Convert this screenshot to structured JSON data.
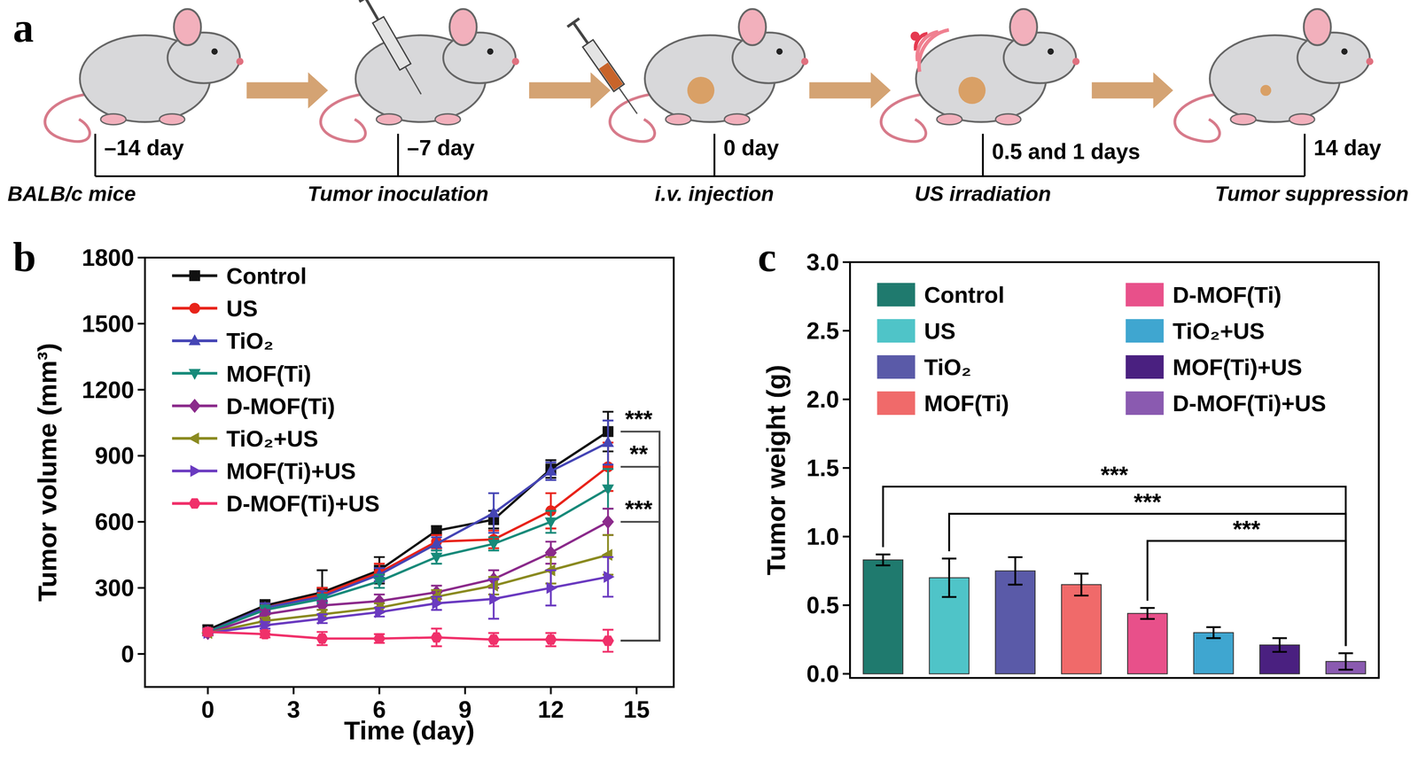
{
  "panels": [
    "a",
    "b",
    "c"
  ],
  "timeline": {
    "steps": [
      {
        "time": "–14 day",
        "label": "BALB/c mice"
      },
      {
        "time": "–7 day",
        "label": "Tumor inoculation"
      },
      {
        "time": "0 day",
        "label": "i.v. injection"
      },
      {
        "time": "0.5 and 1 days",
        "label": "US irradiation"
      },
      {
        "time": "14 day",
        "label": "Tumor suppression"
      }
    ]
  },
  "chart_data": [
    {
      "type": "line",
      "x_label": "Time (day)",
      "y_label": "Tumor volume (mm³)",
      "x": [
        0,
        2,
        4,
        6,
        8,
        10,
        12,
        14
      ],
      "xlim": [
        -2.2,
        16.3
      ],
      "xticks": [
        0,
        3,
        6,
        9,
        12,
        15
      ],
      "ylim": [
        -150,
        1800
      ],
      "yticks": [
        0,
        300,
        600,
        900,
        1200,
        1500,
        1800
      ],
      "legend": "top-left",
      "series": [
        {
          "name": "Control",
          "color": "#111111",
          "marker": "square",
          "values": [
            110,
            220,
            280,
            380,
            560,
            610,
            840,
            1010
          ],
          "errors": [
            20,
            25,
            100,
            60,
            20,
            40,
            40,
            90
          ]
        },
        {
          "name": "US",
          "color": "#e8231a",
          "marker": "circle",
          "values": [
            100,
            210,
            270,
            370,
            510,
            520,
            650,
            850
          ],
          "errors": [
            15,
            20,
            30,
            40,
            30,
            40,
            80,
            110
          ]
        },
        {
          "name": "TiO₂",
          "color": "#4545b5",
          "marker": "triangle-up",
          "values": [
            100,
            210,
            260,
            360,
            500,
            640,
            830,
            960
          ],
          "errors": [
            15,
            20,
            25,
            30,
            30,
            90,
            40,
            100
          ]
        },
        {
          "name": "MOF(Ti)",
          "color": "#178a7a",
          "marker": "triangle-down",
          "values": [
            100,
            200,
            250,
            330,
            440,
            500,
            600,
            750
          ],
          "errors": [
            10,
            20,
            20,
            30,
            30,
            30,
            50,
            90
          ]
        },
        {
          "name": "D-MOF(Ti)",
          "color": "#8b2a8b",
          "marker": "diamond",
          "values": [
            95,
            180,
            220,
            240,
            280,
            340,
            460,
            600
          ],
          "errors": [
            10,
            20,
            20,
            30,
            30,
            40,
            50,
            60
          ]
        },
        {
          "name": "TiO₂+US",
          "color": "#8a8a20",
          "marker": "triangle-left",
          "values": [
            95,
            150,
            180,
            210,
            260,
            310,
            380,
            450
          ],
          "errors": [
            10,
            15,
            20,
            20,
            30,
            40,
            60,
            90
          ]
        },
        {
          "name": "MOF(Ti)+US",
          "color": "#6a3ac0",
          "marker": "triangle-right",
          "values": [
            95,
            130,
            160,
            190,
            230,
            250,
            300,
            350
          ],
          "errors": [
            10,
            15,
            20,
            20,
            30,
            90,
            80,
            90
          ]
        },
        {
          "name": "D-MOF(Ti)+US",
          "color": "#f0306a",
          "marker": "hexagon",
          "values": [
            100,
            90,
            70,
            70,
            75,
            65,
            65,
            60
          ],
          "errors": [
            15,
            15,
            30,
            20,
            40,
            30,
            30,
            50
          ]
        }
      ],
      "annotations": [
        {
          "text": "***",
          "between": [
            "Control",
            "D-MOF(Ti)+US"
          ]
        },
        {
          "text": "**",
          "between": [
            "US",
            "D-MOF(Ti)+US"
          ]
        },
        {
          "text": "***",
          "between": [
            "D-MOF(Ti)",
            "D-MOF(Ti)+US"
          ]
        }
      ]
    },
    {
      "type": "bar",
      "y_label": "Tumor weight (g)",
      "categories": [
        "Control",
        "US",
        "TiO₂",
        "MOF(Ti)",
        "D-MOF(Ti)",
        "TiO₂+US",
        "MOF(Ti)+US",
        "D-MOF(Ti)+US"
      ],
      "values": [
        0.83,
        0.7,
        0.75,
        0.65,
        0.44,
        0.3,
        0.21,
        0.09
      ],
      "errors": [
        0.04,
        0.14,
        0.1,
        0.08,
        0.04,
        0.04,
        0.05,
        0.06
      ],
      "colors": [
        "#1f7a6e",
        "#4fc4c8",
        "#5a5aa8",
        "#f06a6a",
        "#e8508a",
        "#3fa6d0",
        "#4a2080",
        "#8a5ab0"
      ],
      "ylim": [
        -0.03,
        3.0
      ],
      "yticks": [
        {
          "value": 0,
          "label": "0.0"
        },
        {
          "value": 0.5,
          "label": "0.5"
        },
        {
          "value": 1,
          "label": "1.0"
        },
        {
          "value": 1.5,
          "label": "1.5"
        },
        {
          "value": 2,
          "label": "2.0"
        },
        {
          "value": 2.5,
          "label": "2.5"
        },
        {
          "value": 3,
          "label": "3.0"
        }
      ],
      "tick_labels": "y",
      "legend": "top",
      "annotations": [
        {
          "text": "***",
          "between": [
            "Control",
            "D-MOF(Ti)+US"
          ]
        },
        {
          "text": "***",
          "between": [
            "US",
            "D-MOF(Ti)+US"
          ]
        },
        {
          "text": "***",
          "between": [
            "D-MOF(Ti)",
            "D-MOF(Ti)+US"
          ]
        }
      ]
    }
  ]
}
